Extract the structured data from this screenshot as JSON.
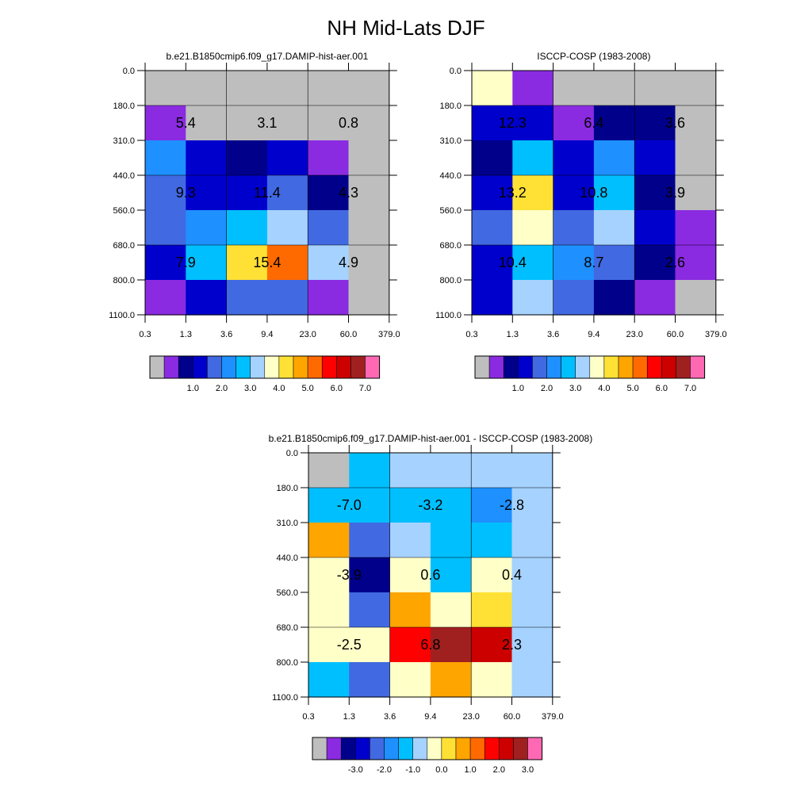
{
  "figure": {
    "title": "NH Mid-Lats DJF"
  },
  "colors": {
    "palette": [
      "#bebebe",
      "#8a2be2",
      "#00008b",
      "#0000cd",
      "#4169e1",
      "#1e90ff",
      "#00bfff",
      "#a6d2ff",
      "#ffffc8",
      "#ffe135",
      "#ffa500",
      "#ff6a00",
      "#ff0000",
      "#cd0000",
      "#a02020",
      "#ff69b4"
    ],
    "grid": "#000000"
  },
  "chart_data": [
    {
      "type": "heatmap",
      "title": "b.e21.B1850cmip6.f09_g17.DAMIP-hist-aer.001",
      "x_ticks": [
        "0.3",
        "1.3",
        "3.6",
        "9.4",
        "23.0",
        "60.0",
        "379.0"
      ],
      "y_ticks": [
        "0.0",
        "180.0",
        "310.0",
        "440.0",
        "560.0",
        "680.0",
        "800.0",
        "1100.0"
      ],
      "cell_color_index": [
        [
          0,
          0,
          0,
          0,
          0,
          0
        ],
        [
          1,
          0,
          0,
          0,
          0,
          0
        ],
        [
          5,
          3,
          2,
          3,
          1,
          0
        ],
        [
          4,
          3,
          3,
          4,
          2,
          0
        ],
        [
          4,
          5,
          6,
          7,
          4,
          0
        ],
        [
          3,
          6,
          9,
          11,
          7,
          0
        ],
        [
          1,
          3,
          4,
          4,
          1,
          0
        ]
      ],
      "block_labels": [
        [
          "5.4",
          "3.1",
          "0.8"
        ],
        [
          "9.3",
          "11.4",
          "4.3"
        ],
        [
          "7.9",
          "15.4",
          "4.9"
        ]
      ],
      "colorbar": {
        "labels": [
          "1.0",
          "2.0",
          "3.0",
          "4.0",
          "5.0",
          "6.0",
          "7.0"
        ]
      }
    },
    {
      "type": "heatmap",
      "title": "ISCCP-COSP (1983-2008)",
      "x_ticks": [
        "0.3",
        "1.3",
        "3.6",
        "9.4",
        "23.0",
        "60.0",
        "379.0"
      ],
      "y_ticks": [
        "0.0",
        "180.0",
        "310.0",
        "440.0",
        "560.0",
        "680.0",
        "800.0",
        "1100.0"
      ],
      "cell_color_index": [
        [
          8,
          1,
          0,
          0,
          0,
          0
        ],
        [
          3,
          3,
          1,
          2,
          2,
          0
        ],
        [
          2,
          6,
          3,
          5,
          3,
          0
        ],
        [
          3,
          9,
          3,
          6,
          2,
          0
        ],
        [
          4,
          8,
          4,
          7,
          3,
          1
        ],
        [
          3,
          6,
          5,
          4,
          2,
          1
        ],
        [
          3,
          7,
          4,
          2,
          1,
          0
        ]
      ],
      "block_labels": [
        [
          "12.3",
          "6.4",
          "3.6"
        ],
        [
          "13.2",
          "10.8",
          "3.9"
        ],
        [
          "10.4",
          "8.7",
          "2.6"
        ]
      ],
      "colorbar": {
        "labels": [
          "1.0",
          "2.0",
          "3.0",
          "4.0",
          "5.0",
          "6.0",
          "7.0"
        ]
      }
    },
    {
      "type": "heatmap",
      "title": "b.e21.B1850cmip6.f09_g17.DAMIP-hist-aer.001 - ISCCP-COSP (1983-2008)",
      "x_ticks": [
        "0.3",
        "1.3",
        "3.6",
        "9.4",
        "23.0",
        "60.0",
        "379.0"
      ],
      "y_ticks": [
        "0.0",
        "180.0",
        "310.0",
        "440.0",
        "560.0",
        "680.0",
        "800.0",
        "1100.0"
      ],
      "cell_color_index": [
        [
          0,
          6,
          7,
          7,
          7,
          7
        ],
        [
          6,
          6,
          6,
          6,
          5,
          7
        ],
        [
          10,
          4,
          7,
          6,
          6,
          7
        ],
        [
          8,
          2,
          8,
          6,
          8,
          7
        ],
        [
          8,
          4,
          10,
          8,
          9,
          7
        ],
        [
          8,
          8,
          12,
          14,
          13,
          7
        ],
        [
          6,
          4,
          8,
          10,
          8,
          7
        ]
      ],
      "block_labels": [
        [
          "-7.0",
          "-3.2",
          "-2.8"
        ],
        [
          "-3.9",
          "0.6",
          "0.4"
        ],
        [
          "-2.5",
          "6.8",
          "2.3"
        ]
      ],
      "colorbar": {
        "labels": [
          "-3.0",
          "-2.0",
          "-1.0",
          "0.0",
          "1.0",
          "2.0",
          "3.0"
        ]
      }
    }
  ]
}
